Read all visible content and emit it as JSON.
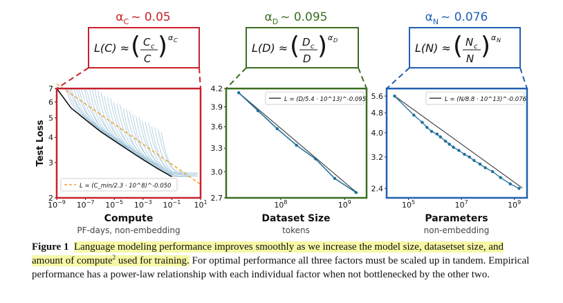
{
  "colors": {
    "compute": "#c8202a",
    "data": "#3a6d1f",
    "params": "#1f5fb0",
    "series": "#1f6f9a",
    "fit": "#3a3a3a",
    "fit_compute": "#f0a030",
    "light_curves": "#9ec3da"
  },
  "panels": [
    {
      "key": "compute",
      "alpha_label": "α_C ~ 0.05",
      "alpha_sym": "α",
      "alpha_sub": "C",
      "alpha_value": "~ 0.05",
      "formula": {
        "lhs": "L(C) ≈",
        "num": "C_c",
        "den": "C",
        "exp": "α_C"
      },
      "xlabel": "Compute",
      "xsub": "PF-days, non-embedding"
    },
    {
      "key": "data",
      "alpha_label": "α_D ~ 0.095",
      "alpha_sym": "α",
      "alpha_sub": "D",
      "alpha_value": "~ 0.095",
      "formula": {
        "lhs": "L(D) ≈",
        "num": "D_c",
        "den": "D",
        "exp": "α_D"
      },
      "xlabel": "Dataset Size",
      "xsub": "tokens"
    },
    {
      "key": "params",
      "alpha_label": "α_N ~ 0.076",
      "alpha_sym": "α",
      "alpha_sub": "N",
      "alpha_value": "~ 0.076",
      "formula": {
        "lhs": "L(N) ≈",
        "num": "N_c",
        "den": "N",
        "exp": "α_N"
      },
      "xlabel": "Parameters",
      "xsub": "non-embedding"
    }
  ],
  "chart_data": [
    {
      "type": "line",
      "title": "",
      "xlabel": "Compute",
      "ylabel": "Test Loss",
      "xscale": "log",
      "yscale": "log",
      "xlim": [
        1e-09,
        10
      ],
      "ylim": [
        2,
        7
      ],
      "x_ticks": [
        "10^-9",
        "10^-7",
        "10^-5",
        "10^-3",
        "10^-1",
        "10^1"
      ],
      "y_ticks": [
        "2",
        "3",
        "4",
        "5",
        "6",
        "7"
      ],
      "legend": "L = (C_min/2.3 · 10^8)^-0.050",
      "legend_position": "bottom-left",
      "fit": {
        "c0": 230000000.0,
        "alpha": 0.05
      },
      "frontier": {
        "x": [
          1e-09,
          1e-08,
          1e-07,
          1e-06,
          1e-05,
          0.0001,
          0.001,
          0.01,
          0.1
        ],
        "y": [
          7.0,
          5.6,
          4.9,
          4.3,
          3.85,
          3.45,
          3.1,
          2.8,
          2.55
        ]
      },
      "training_curves_note": "many light-blue training curves above frontier"
    },
    {
      "type": "line",
      "title": "",
      "xlabel": "Dataset Size",
      "ylabel": "",
      "xscale": "log",
      "yscale": "log",
      "xlim": [
        14000000.0,
        2200000000.0
      ],
      "ylim": [
        2.7,
        4.2
      ],
      "x_ticks": [
        "10^8",
        "10^9"
      ],
      "y_ticks": [
        "2.7",
        "3.0",
        "3.3",
        "3.6",
        "3.9",
        "4.2"
      ],
      "legend": "L = (D/5.4 · 10^13)^-0.095",
      "legend_position": "top-right",
      "fit": {
        "c0": 54000000000000.0,
        "alpha": 0.095
      },
      "series": [
        {
          "name": "data",
          "x": [
            22000000.0,
            44000000.0,
            88000000.0,
            176000000.0,
            350000000.0,
            700000000.0,
            1500000000.0
          ],
          "y": [
            4.13,
            3.84,
            3.57,
            3.34,
            3.16,
            2.92,
            2.76
          ]
        }
      ]
    },
    {
      "type": "line",
      "title": "",
      "xlabel": "Parameters",
      "ylabel": "",
      "xscale": "log",
      "yscale": "log",
      "xlim": [
        15000.0,
        3000000000.0
      ],
      "ylim": [
        2.2,
        6.0
      ],
      "x_ticks": [
        "10^5",
        "10^7",
        "10^9"
      ],
      "y_ticks": [
        "2.4",
        "3.2",
        "4.0",
        "4.8",
        "5.6"
      ],
      "legend": "L = (N/8.8 · 10^13)^-0.076",
      "legend_position": "top-right",
      "fit": {
        "c0": 88000000000000.0,
        "alpha": 0.076
      },
      "series": [
        {
          "name": "data",
          "x": [
            30000.0,
            160000.0,
            330000.0,
            500000.0,
            750000.0,
            1200000.0,
            1600000.0,
            2500000.0,
            3500000.0,
            5000000.0,
            8000000.0,
            13000000.0,
            20000000.0,
            30000000.0,
            50000000.0,
            80000000.0,
            150000000.0,
            300000000.0,
            700000000.0,
            1500000000.0
          ],
          "y": [
            5.6,
            4.7,
            4.4,
            4.2,
            4.05,
            3.95,
            3.85,
            3.7,
            3.6,
            3.5,
            3.4,
            3.28,
            3.2,
            3.1,
            3.0,
            2.9,
            2.8,
            2.65,
            2.5,
            2.4
          ]
        }
      ]
    }
  ],
  "caption": {
    "label": "Figure 1",
    "highlight_1": "Language modeling performance improves smoothly as we increase the model size, datasetset size, and amount of compute",
    "footnote": "2",
    "highlight_2": " used for training.",
    "rest": " For optimal performance all three factors must be scaled up in tandem. Empirical performance has a power-law relationship with each individual factor when not bottlenecked by the other two."
  }
}
